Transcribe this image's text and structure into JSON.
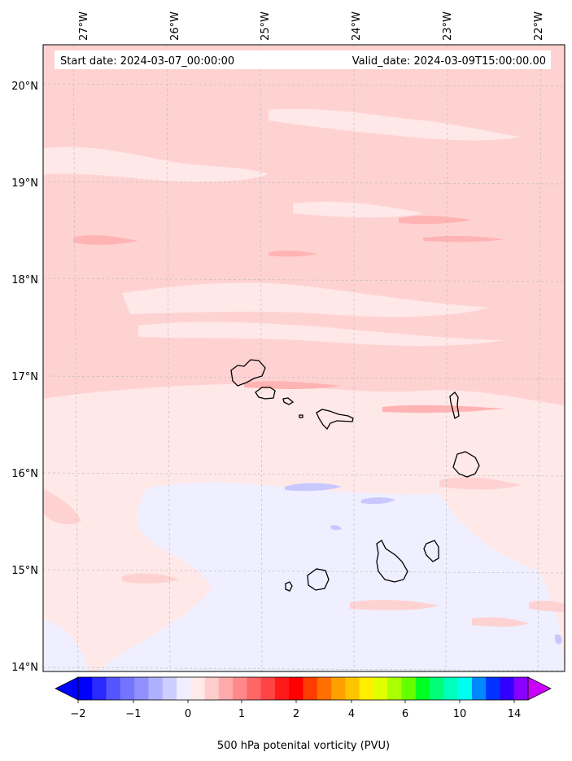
{
  "header": {
    "start_date": "Start date: 2024-03-07_00:00:00",
    "valid_date": "Valid_date: 2024-03-09T15:00:00.00"
  },
  "longitude_labels": [
    "27°W",
    "26°W",
    "25°W",
    "24°W",
    "23°W",
    "22°W"
  ],
  "latitude_labels": [
    "20°N",
    "19°N",
    "18°N",
    "17°N",
    "16°N",
    "15°N",
    "14°N"
  ],
  "colorbar": {
    "title": "500 hPa potenital vorticity (PVU)",
    "tick_labels": [
      "−2",
      "−1",
      "0",
      "1",
      "2",
      "4",
      "6",
      "10",
      "14"
    ],
    "colors": [
      "#0000ff",
      "#2a2aff",
      "#5555ff",
      "#7474ff",
      "#9090ff",
      "#afafff",
      "#cdcdff",
      "#eeeeff",
      "#ffeaea",
      "#ffcccc",
      "#ffaaaa",
      "#ff8888",
      "#ff6666",
      "#ff4444",
      "#ff1a1a",
      "#ff0000",
      "#ff3c00",
      "#ff7000",
      "#ffa000",
      "#ffc400",
      "#ffee00",
      "#e0ff00",
      "#aaff00",
      "#66ff00",
      "#00ff22",
      "#00ff77",
      "#00ffbb",
      "#00ffee",
      "#0088ff",
      "#0033ff",
      "#3300ff",
      "#8800ff"
    ],
    "under_color": "#0000ff",
    "over_color": "#cc00ff"
  },
  "field_colors": {
    "base": "#ffd2d2",
    "light": "#ffe8e8",
    "medium": "#ffb3b3",
    "pale_blue": "#efefff",
    "blue": "#c8c8ff"
  },
  "chart_data": {
    "type": "map",
    "variable": "500 hPa potenital vorticity (PVU)",
    "lon_range": [
      -27.4,
      -21.8
    ],
    "lat_range": [
      14.0,
      20.4
    ],
    "lon_ticks": [
      -27,
      -26,
      -25,
      -24,
      -23,
      -22
    ],
    "lat_ticks": [
      20,
      19,
      18,
      17,
      16,
      15,
      14
    ],
    "grid": true,
    "colorbar_levels": [
      -2,
      -1,
      0,
      1,
      2,
      4,
      6,
      10,
      14
    ],
    "colorbar_extend": "both",
    "colorbar_location": "bottom"
  }
}
